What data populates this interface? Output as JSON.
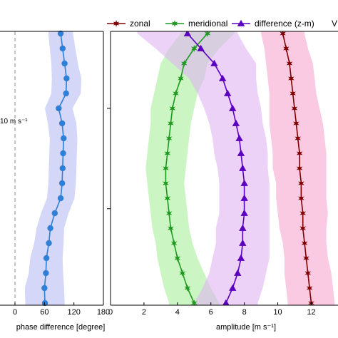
{
  "chart_data": [
    {
      "type": "line",
      "xlabel": "phase difference [degree]",
      "xlim": [
        0,
        180
      ],
      "xticks": [
        0,
        60,
        120,
        180
      ],
      "ylabel": "",
      "ylim": [
        0,
        19
      ],
      "annotation": "10 m s⁻¹",
      "reference_line_x": 0,
      "series": [
        {
          "name": "",
          "color": "#2f7fd6",
          "band_color": "#b7bdf2",
          "marker": "circle",
          "x": [
            93,
            97,
            101,
            105,
            104,
            89,
            96,
            99,
            98,
            97,
            96,
            93,
            81,
            72,
            69,
            64,
            63,
            60,
            61
          ],
          "y": [
            19,
            18,
            17,
            16,
            15,
            14,
            13,
            12,
            11,
            10,
            9,
            8,
            7,
            6,
            5,
            4,
            3,
            2,
            1
          ],
          "band_half_width": [
            25,
            26,
            27,
            30,
            30,
            28,
            29,
            28,
            28,
            28,
            28,
            28,
            28,
            28,
            30,
            33,
            35,
            40,
            40
          ]
        }
      ]
    },
    {
      "type": "line",
      "xlabel": "amplitude [m s⁻¹]",
      "xlim": [
        0,
        13.6
      ],
      "xticks": [
        0,
        2,
        4,
        6,
        8,
        10,
        12
      ],
      "ylabel": "",
      "ylim": [
        0,
        19
      ],
      "legend": {
        "position": "top",
        "title": ""
      },
      "series": [
        {
          "name": "zonal",
          "color": "#800000",
          "band_color": "#f6a6cf",
          "marker": "star",
          "x": [
            10.3,
            10.5,
            10.7,
            10.8,
            10.9,
            11.0,
            11.1,
            11.2,
            11.3,
            11.3,
            11.4,
            11.4,
            11.5,
            11.5,
            11.6,
            11.7,
            11.8,
            11.9,
            12.0
          ],
          "y": [
            19,
            18,
            17,
            16,
            15,
            14,
            13,
            12,
            11,
            10,
            9,
            8,
            7,
            6,
            5,
            4,
            3,
            2,
            1
          ],
          "band_half_width": [
            1.3,
            1.3,
            1.4,
            1.4,
            1.4,
            1.5,
            1.6,
            1.6,
            1.6,
            1.6,
            1.5,
            1.5,
            1.5,
            1.4,
            1.3,
            1.3,
            1.4,
            1.4,
            1.4
          ]
        },
        {
          "name": "meridional",
          "color": "#1f9a1f",
          "band_color": "#a8ef9a",
          "marker": "star",
          "x": [
            5.8,
            5.0,
            4.4,
            4.2,
            3.9,
            3.7,
            3.6,
            3.5,
            3.4,
            3.3,
            3.3,
            3.4,
            3.5,
            3.6,
            3.8,
            4.0,
            4.3,
            4.6,
            5.0
          ],
          "y": [
            19,
            18,
            17,
            16,
            15,
            14,
            13,
            12,
            11,
            10,
            9,
            8,
            7,
            6,
            5,
            4,
            3,
            2,
            1
          ],
          "band_half_width": [
            1.6,
            1.5,
            1.4,
            1.4,
            1.3,
            1.3,
            1.2,
            1.2,
            1.2,
            1.2,
            1.1,
            1.1,
            1.1,
            1.1,
            1.1,
            1.2,
            1.3,
            1.4,
            1.5
          ]
        },
        {
          "name": "difference (z-m)",
          "color": "#5b00c0",
          "band_color": "#e0b4f2",
          "marker": "triangle",
          "x": [
            4.6,
            5.4,
            6.2,
            6.7,
            7.0,
            7.3,
            7.5,
            7.7,
            7.8,
            7.9,
            8.0,
            8.0,
            8.0,
            7.9,
            7.9,
            7.8,
            7.6,
            7.3,
            6.9
          ],
          "y": [
            19,
            18,
            17,
            16,
            15,
            14,
            13,
            12,
            11,
            10,
            9,
            8,
            7,
            6,
            5,
            4,
            3,
            2,
            1
          ],
          "band_half_width": [
            3.0,
            2.7,
            2.5,
            2.0,
            1.8,
            1.7,
            1.6,
            1.6,
            1.6,
            1.5,
            1.5,
            1.5,
            1.5,
            1.6,
            1.6,
            1.7,
            1.7,
            1.8,
            1.9
          ]
        }
      ]
    }
  ],
  "legend": {
    "items": [
      "zonal",
      "meridional",
      "difference (z-m)"
    ],
    "overflow_text": "V"
  }
}
